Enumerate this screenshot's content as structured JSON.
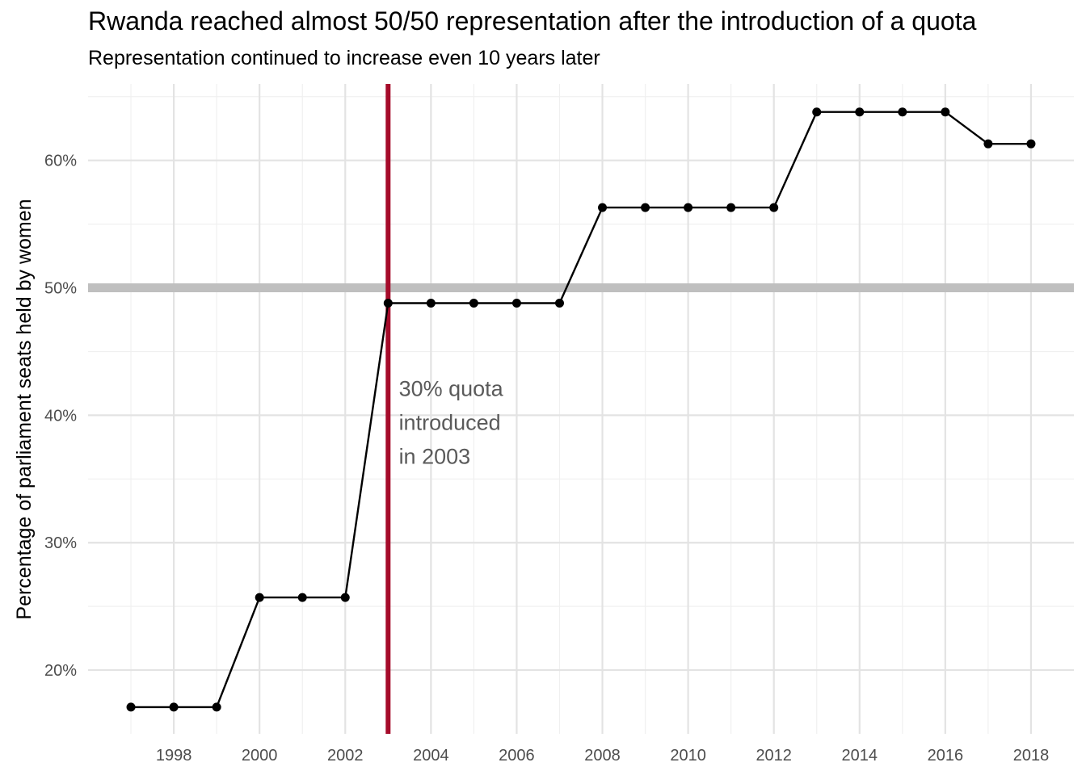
{
  "chart_data": {
    "type": "line",
    "title": "Rwanda reached almost 50/50 representation after the introduction of a quota",
    "subtitle": "Representation continued to increase even 10 years later",
    "xlabel": "",
    "ylabel": "Percentage of parliament seats held by women",
    "xlim": [
      1996,
      2019
    ],
    "ylim": [
      15,
      66
    ],
    "x_ticks": [
      1998,
      2000,
      2002,
      2004,
      2006,
      2008,
      2010,
      2012,
      2014,
      2016,
      2018
    ],
    "y_ticks": [
      20,
      30,
      40,
      50,
      60
    ],
    "y_tick_labels": [
      "20%",
      "30%",
      "40%",
      "50%",
      "60%"
    ],
    "grid": true,
    "series": [
      {
        "x": [
          1997,
          1998,
          1999,
          2000,
          2001,
          2002,
          2003,
          2004,
          2005,
          2006,
          2007,
          2008,
          2009,
          2010,
          2011,
          2012,
          2013,
          2014,
          2015,
          2016,
          2017,
          2018
        ],
        "values": [
          17.1,
          17.1,
          17.1,
          25.7,
          25.7,
          25.7,
          48.8,
          48.8,
          48.8,
          48.8,
          48.8,
          56.3,
          56.3,
          56.3,
          56.3,
          56.3,
          63.8,
          63.8,
          63.8,
          63.8,
          61.3,
          61.3
        ],
        "color": "#000000"
      }
    ],
    "reference_lines": [
      {
        "orientation": "horizontal",
        "value": 50,
        "color": "#bfbfbf"
      },
      {
        "orientation": "vertical",
        "value": 2003,
        "color": "#a50b2a"
      }
    ],
    "annotation": {
      "lines": [
        "30% quota",
        "introduced",
        "in 2003"
      ],
      "x": 2003.25,
      "y": 41.5
    }
  }
}
